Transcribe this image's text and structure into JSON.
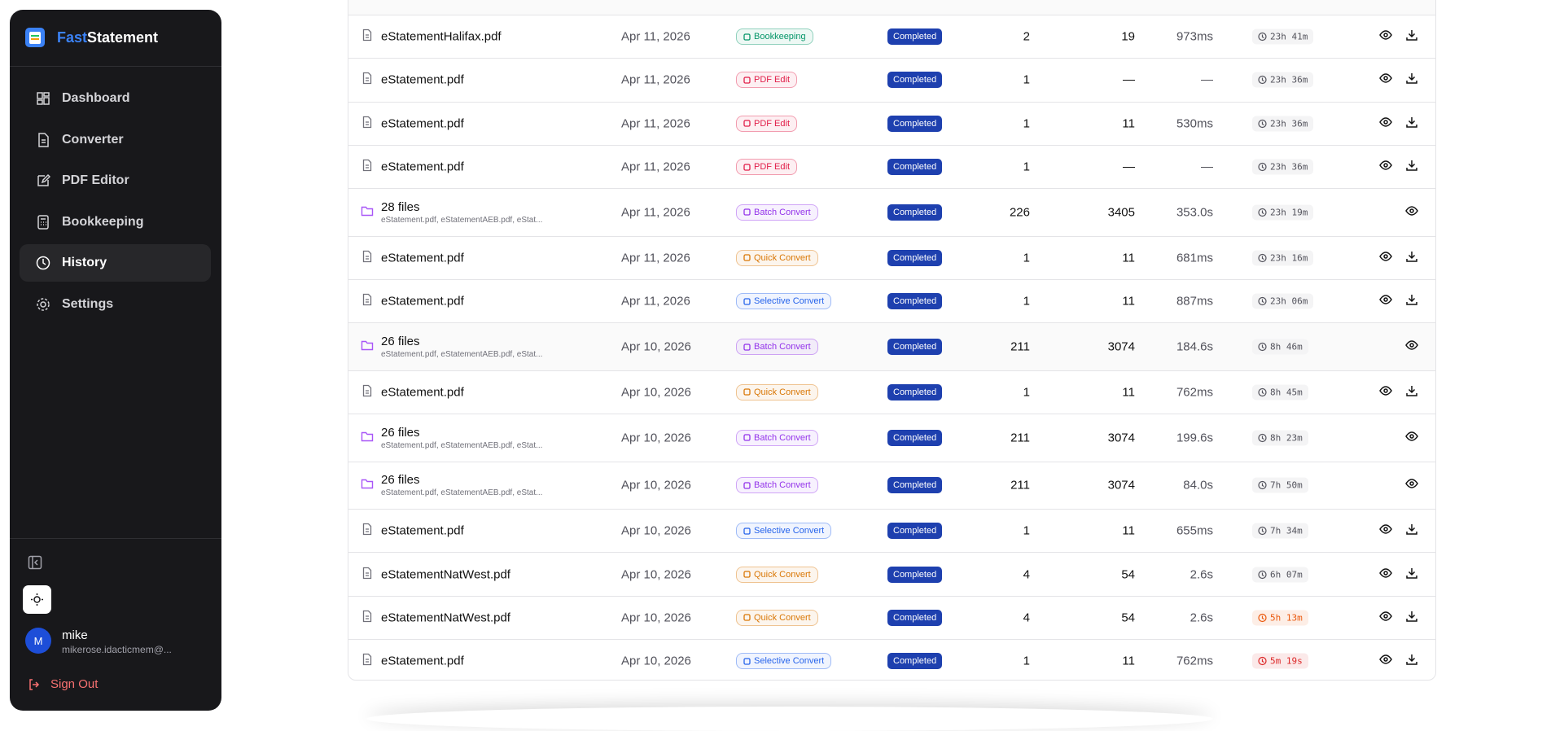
{
  "sidebar": {
    "brand": [
      "Fast",
      "Statement"
    ],
    "nav": [
      "Dashboard",
      "Converter",
      "PDF Editor",
      "Bookkeeping",
      "History",
      "Settings"
    ],
    "user": {
      "initial": "M",
      "name": "mike",
      "email": "mikerose.idacticmem@..."
    },
    "sign_out": "Sign Out"
  },
  "table": {
    "rows": [
      {
        "file": "eStatementHalifax.pdf",
        "date": "Apr 11, 2026",
        "type": "Bookkeeping",
        "type_color": "#059669",
        "status": "Completed",
        "pages": "2",
        "transactions": "19",
        "time": "973ms",
        "expires": "23h 41m"
      },
      {
        "file": "eStatement.pdf",
        "date": "Apr 11, 2026",
        "type": "PDF Edit",
        "type_color": "#e11d48",
        "status": "Completed",
        "pages": "1",
        "transactions": "—",
        "time": "—",
        "expires": "23h 36m"
      },
      {
        "file": "eStatement.pdf",
        "date": "Apr 11, 2026",
        "type": "PDF Edit",
        "type_color": "#e11d48",
        "status": "Completed",
        "pages": "1",
        "transactions": "11",
        "time": "530ms",
        "expires": "23h 36m"
      },
      {
        "file": "eStatement.pdf",
        "date": "Apr 11, 2026",
        "type": "PDF Edit",
        "type_color": "#e11d48",
        "status": "Completed",
        "pages": "1",
        "transactions": "—",
        "time": "—",
        "expires": "23h 36m"
      },
      {
        "file": "28 files",
        "files": "eStatement.pdf, eStatementAEB.pdf, eStat...",
        "date": "Apr 11, 2026",
        "type": "Batch Convert",
        "type_color": "#9333ea",
        "status": "Completed",
        "pages": "226",
        "transactions": "3405",
        "time": "353.0s",
        "expires": "23h 19m"
      },
      {
        "file": "eStatement.pdf",
        "date": "Apr 11, 2026",
        "type": "Quick Convert",
        "type_color": "#d97706",
        "status": "Completed",
        "pages": "1",
        "transactions": "11",
        "time": "681ms",
        "expires": "23h 16m"
      },
      {
        "file": "eStatement.pdf",
        "date": "Apr 11, 2026",
        "type": "Selective Convert",
        "type_color": "#2563eb",
        "status": "Completed",
        "pages": "1",
        "transactions": "11",
        "time": "887ms",
        "expires": "23h 06m"
      },
      {
        "file": "26 files",
        "files": "eStatement.pdf, eStatementAEB.pdf, eStat...",
        "date": "Apr 10, 2026",
        "type": "Batch Convert",
        "type_color": "#9333ea",
        "status": "Completed",
        "pages": "211",
        "transactions": "3074",
        "time": "184.6s",
        "expires": "8h 46m"
      },
      {
        "file": "eStatement.pdf",
        "date": "Apr 10, 2026",
        "type": "Quick Convert",
        "type_color": "#d97706",
        "status": "Completed",
        "pages": "1",
        "transactions": "11",
        "time": "762ms",
        "expires": "8h 45m"
      },
      {
        "file": "26 files",
        "files": "eStatement.pdf, eStatementAEB.pdf, eStat...",
        "date": "Apr 10, 2026",
        "type": "Batch Convert",
        "type_color": "#9333ea",
        "status": "Completed",
        "pages": "211",
        "transactions": "3074",
        "time": "199.6s",
        "expires": "8h 23m"
      },
      {
        "file": "26 files",
        "files": "eStatement.pdf, eStatementAEB.pdf, eStat...",
        "date": "Apr 10, 2026",
        "type": "Batch Convert",
        "type_color": "#9333ea",
        "status": "Completed",
        "pages": "211",
        "transactions": "3074",
        "time": "84.0s",
        "expires": "7h 50m"
      },
      {
        "file": "eStatement.pdf",
        "date": "Apr 10, 2026",
        "type": "Selective Convert",
        "type_color": "#2563eb",
        "status": "Completed",
        "pages": "1",
        "transactions": "11",
        "time": "655ms",
        "expires": "7h 34m"
      },
      {
        "file": "eStatementNatWest.pdf",
        "date": "Apr 10, 2026",
        "type": "Quick Convert",
        "type_color": "#d97706",
        "status": "Completed",
        "pages": "4",
        "transactions": "54",
        "time": "2.6s",
        "expires": "6h 07m"
      },
      {
        "file": "eStatementNatWest.pdf",
        "date": "Apr 10, 2026",
        "type": "Quick Convert",
        "type_color": "#d97706",
        "status": "Completed",
        "pages": "4",
        "transactions": "54",
        "time": "2.6s",
        "expires": "5h 13m",
        "expires_color": "#ea580c"
      },
      {
        "file": "eStatement.pdf",
        "date": "Apr 10, 2026",
        "type": "Selective Convert",
        "type_color": "#2563eb",
        "status": "Completed",
        "pages": "1",
        "transactions": "11",
        "time": "762ms",
        "expires": "5m 19s",
        "expires_color": "#dc2626"
      }
    ]
  }
}
